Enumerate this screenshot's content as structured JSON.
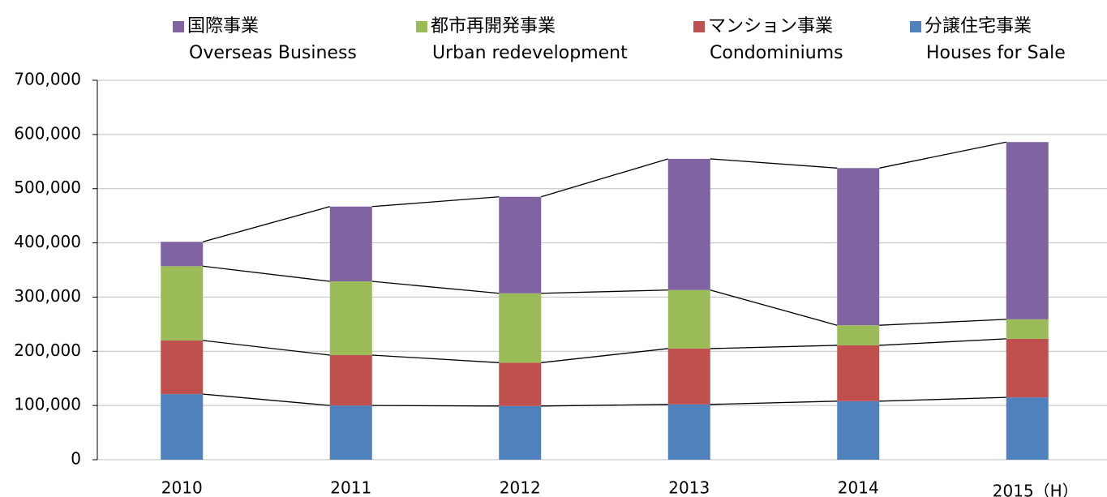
{
  "chart_data": {
    "type": "stacked_bar",
    "categories": [
      "2010",
      "2011",
      "2012",
      "2013",
      "2014",
      "2015（H）"
    ],
    "series": [
      {
        "name": "分譲住宅事業",
        "subtitle": "Houses for Sale",
        "color": "#4f81bd",
        "values": [
          121000,
          100000,
          99000,
          102000,
          108000,
          115000
        ]
      },
      {
        "name": "マンション事業",
        "subtitle": "Condominiums",
        "color": "#c0504d",
        "values": [
          99000,
          93000,
          80000,
          103000,
          103000,
          108000
        ]
      },
      {
        "name": "都市再開発事業",
        "subtitle": "Urban redevelopment",
        "color": "#9bbb59",
        "values": [
          137000,
          136000,
          128000,
          108000,
          37000,
          36000
        ]
      },
      {
        "name": "国際事業",
        "subtitle": "Overseas Business",
        "color": "#8064a2",
        "values": [
          45000,
          138000,
          178000,
          242000,
          290000,
          327000
        ]
      }
    ],
    "ylim": [
      0,
      700000
    ],
    "yticks": [
      0,
      {
        "value": 100000,
        "label": "100,000"
      },
      {
        "value": 200000,
        "label": "200,000"
      },
      {
        "value": 300000,
        "label": "300,000"
      },
      {
        "value": 400000,
        "label": "400,000"
      },
      {
        "value": 500000,
        "label": "500,000"
      },
      {
        "value": 600000,
        "label": "600,000"
      },
      {
        "value": 700000,
        "label": "700,000"
      }
    ],
    "grid": true,
    "legend": "top",
    "connector_lines": true
  }
}
